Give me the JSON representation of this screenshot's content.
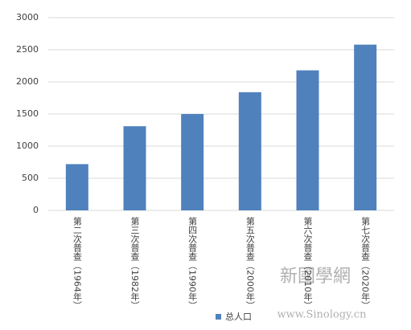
{
  "chart_data": {
    "type": "bar",
    "categories": [
      "第二次普查（1964年）",
      "第三次普查（1982年）",
      "第四次普查（1990年）",
      "第五次普查（2000年）",
      "第六次普查（2010年）",
      "第七次普查（2020年）"
    ],
    "series": [
      {
        "name": "总人口",
        "color": "#4f81bd",
        "values": [
          720,
          1310,
          1500,
          1840,
          2180,
          2580
        ]
      }
    ],
    "ylim": [
      0,
      3000
    ],
    "yticks": [
      0,
      500,
      1000,
      1500,
      2000,
      2500,
      3000
    ],
    "grid": true,
    "legend": "bottom"
  },
  "watermark": {
    "title": "新國學網",
    "url": "www.Sinology.cn"
  }
}
